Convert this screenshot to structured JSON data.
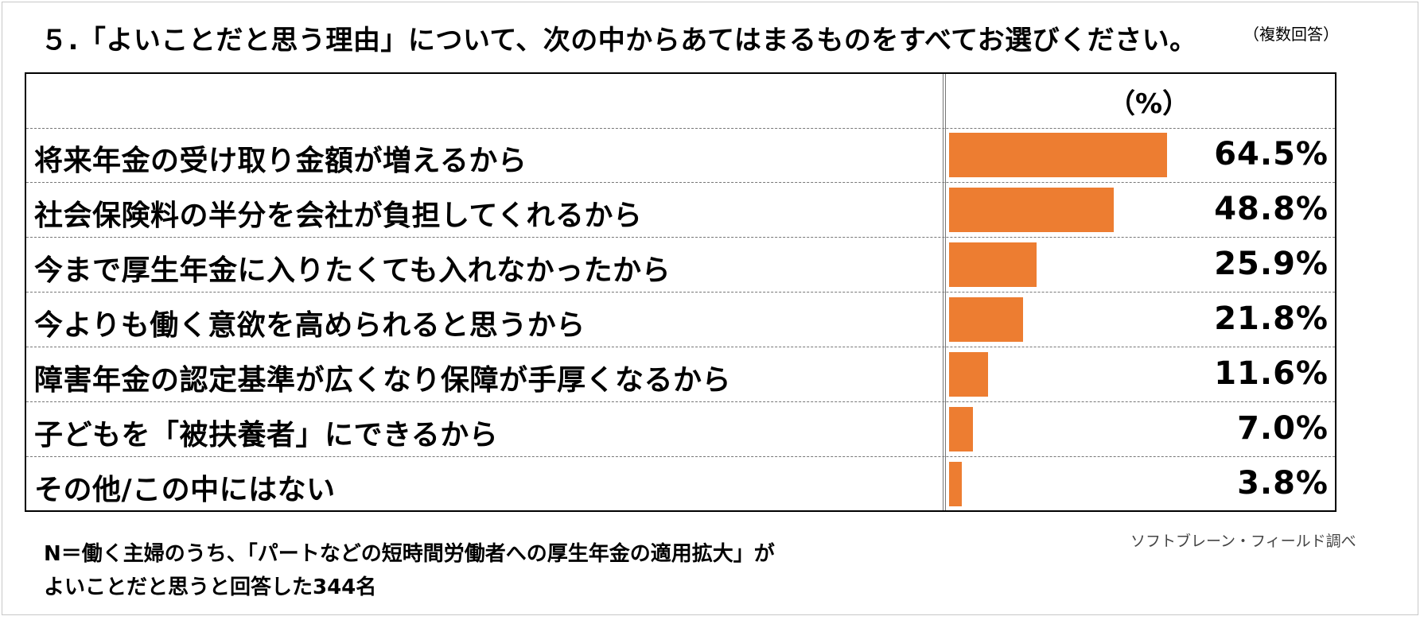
{
  "title": "５.「よいことだと思う理由」について、次の中からあてはまるものをすべてお選びください。",
  "note": "（複数回答）",
  "unit_header": "（%）",
  "chart_data": {
    "type": "bar",
    "orientation": "horizontal",
    "categories": [
      "将来年金の受け取り金額が増えるから",
      "社会保険料の半分を会社が負担してくれるから",
      "今まで厚生年金に入りたくても入れなかったから",
      "今よりも働く意欲を高められると思うから",
      "障害年金の認定基準が広くなり保障が手厚くなるから",
      "子どもを「被扶養者」にできるから",
      "その他/この中にはない"
    ],
    "values": [
      64.5,
      48.8,
      25.9,
      21.8,
      11.6,
      7.0,
      3.8
    ],
    "value_labels": [
      "64.5%",
      "48.8%",
      "25.9%",
      "21.8%",
      "11.6%",
      "7.0%",
      "3.8%"
    ],
    "xlim": [
      0,
      100
    ],
    "bar_color": "#ed7d31"
  },
  "footnote": {
    "line1": "N＝働く主婦のうち、「パートなどの短時間労働者への厚生年金の適用拡大」が",
    "line2": "よいことだと思うと回答した344名"
  },
  "source": "ソフトブレーン・フィールド調べ"
}
